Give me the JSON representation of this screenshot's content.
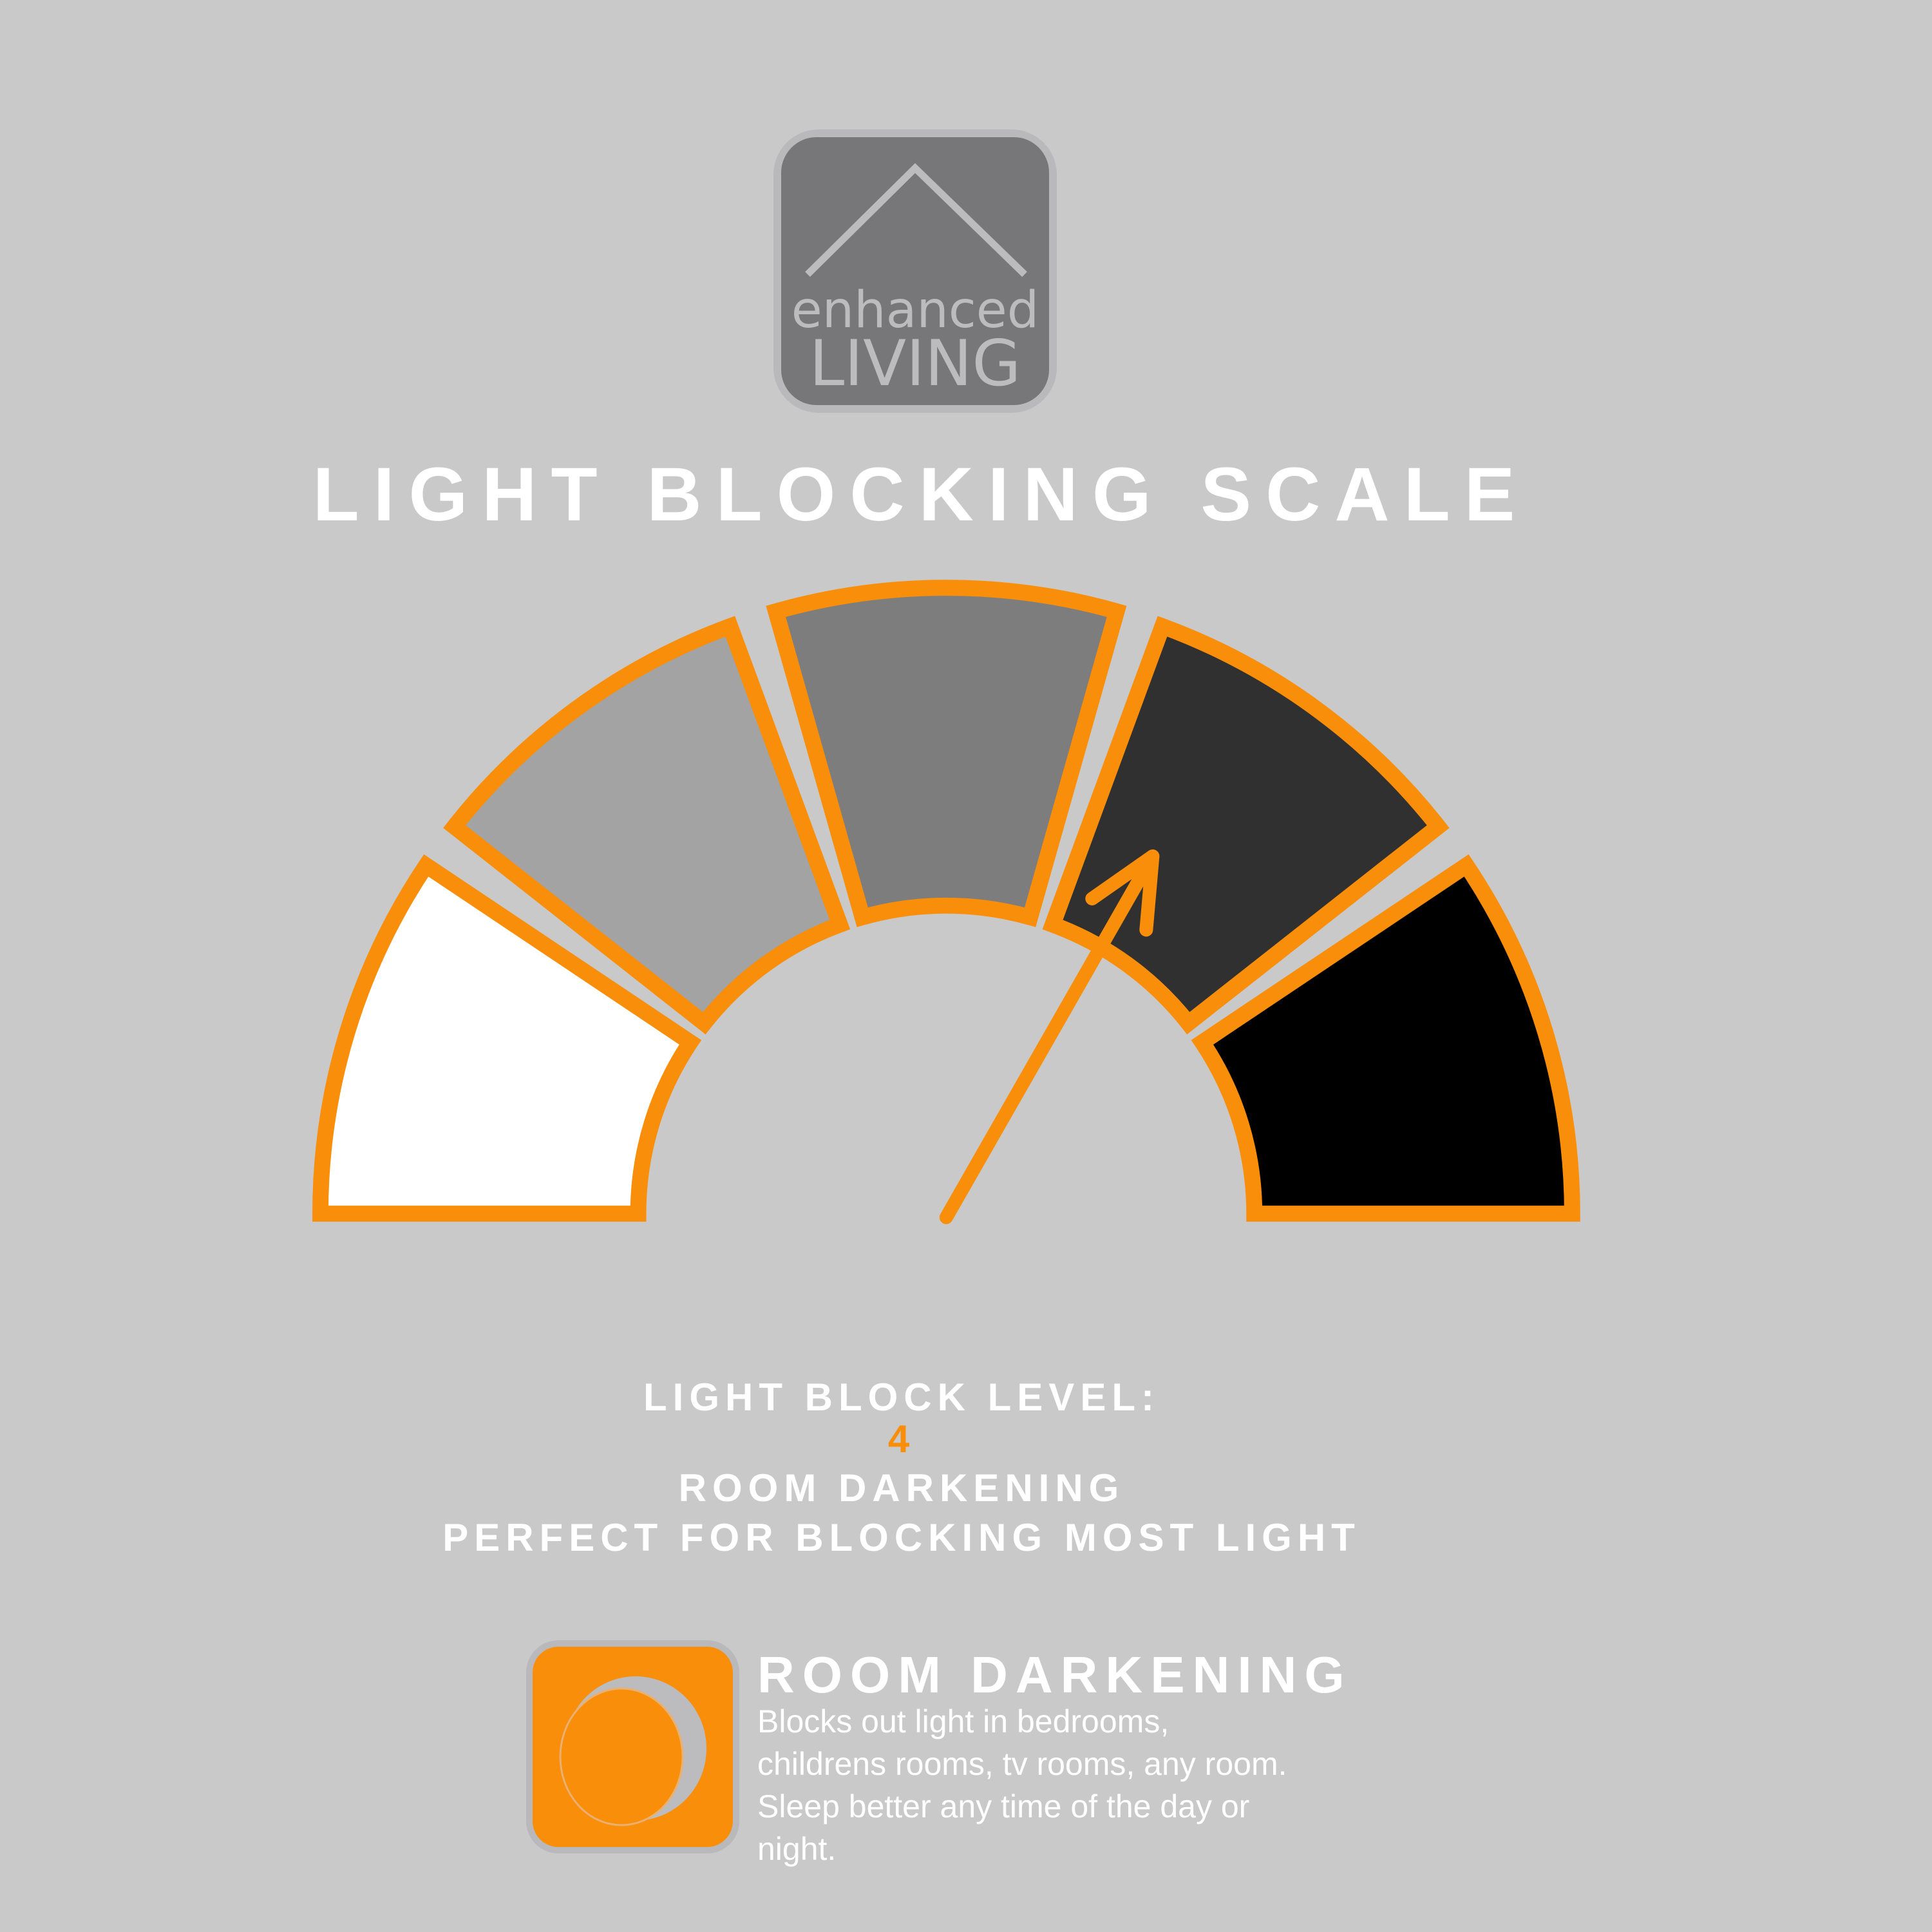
{
  "logo": {
    "line1": "enhanced",
    "line2": "LIVING"
  },
  "title": "LIGHT BLOCKING SCALE",
  "gauge": {
    "level": 4,
    "segments": 5,
    "segment_colors": [
      "#ffffff",
      "#a3a3a3",
      "#7d7d7d",
      "#303030",
      "#000000"
    ],
    "outline_color": "#f98e0a"
  },
  "level_info": {
    "label": "LIGHT BLOCK LEVEL:",
    "value": "4",
    "name": "ROOM DARKENING",
    "description": "PERFECT FOR BLOCKING MOST LIGHT"
  },
  "category": {
    "icon": "moon-icon",
    "title": "ROOM DARKENING",
    "body_lines": [
      "Blocks out light in bedrooms,",
      "childrens rooms, tv rooms, any room.",
      "Sleep better any time of the day or",
      "night."
    ]
  },
  "colors": {
    "background": "#c9c9c9",
    "accent": "#f98e0a",
    "logo_box": "#777779"
  }
}
